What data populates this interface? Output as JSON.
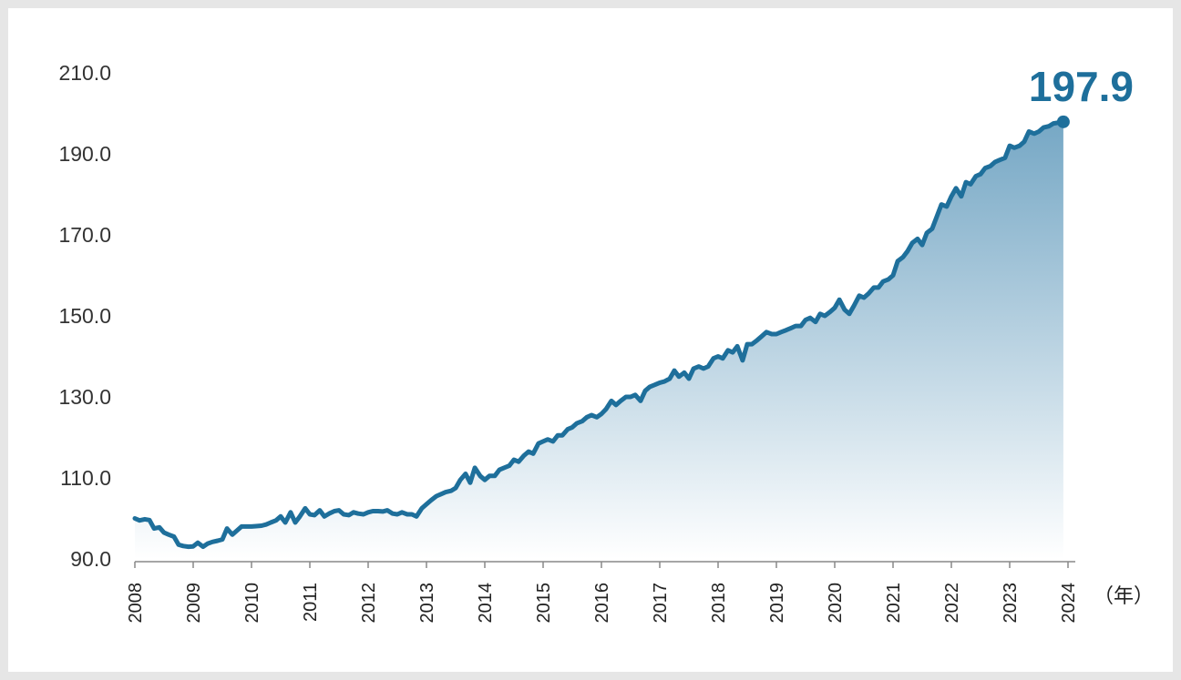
{
  "chart_data": {
    "type": "area",
    "title": "",
    "xlabel": "",
    "ylabel": "",
    "x_unit_label": "（年）",
    "ylim": [
      90,
      210
    ],
    "yticks": [
      "90.0",
      "110.0",
      "130.0",
      "150.0",
      "170.0",
      "190.0",
      "210.0"
    ],
    "yticks_values": [
      90,
      110,
      130,
      150,
      170,
      190,
      210
    ],
    "xticks": [
      "2008",
      "2009",
      "2010",
      "2011",
      "2012",
      "2013",
      "2014",
      "2015",
      "2016",
      "2017",
      "2018",
      "2019",
      "2020",
      "2021",
      "2022",
      "2023",
      "2024"
    ],
    "line_color": "#1e6f9b",
    "fill_color_top": "#6fa3c2",
    "fill_color_bottom": "#ffffff",
    "annotation": {
      "x": 2023.92,
      "y": 197.9,
      "label": "197.9"
    },
    "series": [
      {
        "name": "",
        "points": [
          [
            2008.0,
            100.0
          ],
          [
            2008.08,
            99.5
          ],
          [
            2008.17,
            99.8
          ],
          [
            2008.25,
            99.6
          ],
          [
            2008.33,
            97.5
          ],
          [
            2008.42,
            97.8
          ],
          [
            2008.5,
            96.5
          ],
          [
            2008.58,
            96.0
          ],
          [
            2008.67,
            95.5
          ],
          [
            2008.75,
            93.5
          ],
          [
            2008.83,
            93.2
          ],
          [
            2008.92,
            93.0
          ],
          [
            2009.0,
            93.1
          ],
          [
            2009.08,
            94.0
          ],
          [
            2009.17,
            93.0
          ],
          [
            2009.25,
            93.8
          ],
          [
            2009.33,
            94.2
          ],
          [
            2009.42,
            94.5
          ],
          [
            2009.5,
            94.8
          ],
          [
            2009.58,
            97.5
          ],
          [
            2009.67,
            96.0
          ],
          [
            2009.75,
            97.0
          ],
          [
            2009.83,
            98.0
          ],
          [
            2009.92,
            98.0
          ],
          [
            2010.0,
            98.0
          ],
          [
            2010.08,
            98.1
          ],
          [
            2010.17,
            98.2
          ],
          [
            2010.25,
            98.5
          ],
          [
            2010.33,
            99.0
          ],
          [
            2010.42,
            99.5
          ],
          [
            2010.5,
            100.5
          ],
          [
            2010.58,
            99.0
          ],
          [
            2010.67,
            101.5
          ],
          [
            2010.75,
            99.0
          ],
          [
            2010.83,
            100.5
          ],
          [
            2010.92,
            102.5
          ],
          [
            2011.0,
            101.0
          ],
          [
            2011.08,
            100.8
          ],
          [
            2011.17,
            102.0
          ],
          [
            2011.25,
            100.5
          ],
          [
            2011.33,
            101.2
          ],
          [
            2011.42,
            101.8
          ],
          [
            2011.5,
            102.0
          ],
          [
            2011.58,
            101.0
          ],
          [
            2011.67,
            100.8
          ],
          [
            2011.75,
            101.5
          ],
          [
            2011.83,
            101.2
          ],
          [
            2011.92,
            101.0
          ],
          [
            2012.0,
            101.5
          ],
          [
            2012.08,
            101.8
          ],
          [
            2012.17,
            101.8
          ],
          [
            2012.25,
            101.7
          ],
          [
            2012.33,
            102.0
          ],
          [
            2012.42,
            101.2
          ],
          [
            2012.5,
            101.0
          ],
          [
            2012.58,
            101.5
          ],
          [
            2012.67,
            101.0
          ],
          [
            2012.75,
            101.0
          ],
          [
            2012.83,
            100.5
          ],
          [
            2012.92,
            102.5
          ],
          [
            2013.0,
            103.5
          ],
          [
            2013.08,
            104.5
          ],
          [
            2013.17,
            105.5
          ],
          [
            2013.25,
            106.0
          ],
          [
            2013.33,
            106.5
          ],
          [
            2013.42,
            106.8
          ],
          [
            2013.5,
            107.5
          ],
          [
            2013.58,
            109.5
          ],
          [
            2013.67,
            111.0
          ],
          [
            2013.75,
            108.8
          ],
          [
            2013.83,
            112.5
          ],
          [
            2013.92,
            110.5
          ],
          [
            2014.0,
            109.5
          ],
          [
            2014.08,
            110.5
          ],
          [
            2014.17,
            110.5
          ],
          [
            2014.25,
            112.0
          ],
          [
            2014.33,
            112.5
          ],
          [
            2014.42,
            113.0
          ],
          [
            2014.5,
            114.5
          ],
          [
            2014.58,
            114.0
          ],
          [
            2014.67,
            115.5
          ],
          [
            2014.75,
            116.5
          ],
          [
            2014.83,
            116.0
          ],
          [
            2014.92,
            118.5
          ],
          [
            2015.0,
            119.0
          ],
          [
            2015.08,
            119.5
          ],
          [
            2015.17,
            119.0
          ],
          [
            2015.25,
            120.5
          ],
          [
            2015.33,
            120.5
          ],
          [
            2015.42,
            122.0
          ],
          [
            2015.5,
            122.5
          ],
          [
            2015.58,
            123.5
          ],
          [
            2015.67,
            124.0
          ],
          [
            2015.75,
            125.0
          ],
          [
            2015.83,
            125.5
          ],
          [
            2015.92,
            125.0
          ],
          [
            2016.0,
            125.8
          ],
          [
            2016.08,
            127.0
          ],
          [
            2016.17,
            129.0
          ],
          [
            2016.25,
            128.0
          ],
          [
            2016.33,
            129.0
          ],
          [
            2016.42,
            130.0
          ],
          [
            2016.5,
            130.0
          ],
          [
            2016.58,
            130.5
          ],
          [
            2016.67,
            129.0
          ],
          [
            2016.75,
            131.5
          ],
          [
            2016.83,
            132.5
          ],
          [
            2016.92,
            133.0
          ],
          [
            2017.0,
            133.5
          ],
          [
            2017.08,
            133.8
          ],
          [
            2017.17,
            134.5
          ],
          [
            2017.25,
            136.5
          ],
          [
            2017.33,
            135.0
          ],
          [
            2017.42,
            136.0
          ],
          [
            2017.5,
            134.5
          ],
          [
            2017.58,
            137.0
          ],
          [
            2017.67,
            137.5
          ],
          [
            2017.75,
            137.0
          ],
          [
            2017.83,
            137.5
          ],
          [
            2017.92,
            139.5
          ],
          [
            2018.0,
            140.0
          ],
          [
            2018.08,
            139.5
          ],
          [
            2018.17,
            141.5
          ],
          [
            2018.25,
            141.0
          ],
          [
            2018.33,
            142.5
          ],
          [
            2018.42,
            139.0
          ],
          [
            2018.5,
            143.0
          ],
          [
            2018.58,
            143.0
          ],
          [
            2018.67,
            144.0
          ],
          [
            2018.75,
            145.0
          ],
          [
            2018.83,
            146.0
          ],
          [
            2018.92,
            145.5
          ],
          [
            2019.0,
            145.5
          ],
          [
            2019.08,
            146.0
          ],
          [
            2019.17,
            146.5
          ],
          [
            2019.25,
            147.0
          ],
          [
            2019.33,
            147.5
          ],
          [
            2019.42,
            147.5
          ],
          [
            2019.5,
            149.0
          ],
          [
            2019.58,
            149.5
          ],
          [
            2019.67,
            148.5
          ],
          [
            2019.75,
            150.5
          ],
          [
            2019.83,
            150.0
          ],
          [
            2019.92,
            151.0
          ],
          [
            2020.0,
            152.0
          ],
          [
            2020.08,
            154.0
          ],
          [
            2020.17,
            151.5
          ],
          [
            2020.25,
            150.5
          ],
          [
            2020.33,
            152.5
          ],
          [
            2020.42,
            155.0
          ],
          [
            2020.5,
            154.5
          ],
          [
            2020.58,
            155.5
          ],
          [
            2020.67,
            157.0
          ],
          [
            2020.75,
            157.0
          ],
          [
            2020.83,
            158.5
          ],
          [
            2020.92,
            159.0
          ],
          [
            2021.0,
            160.0
          ],
          [
            2021.08,
            163.5
          ],
          [
            2021.17,
            164.5
          ],
          [
            2021.25,
            166.0
          ],
          [
            2021.33,
            168.0
          ],
          [
            2021.42,
            169.0
          ],
          [
            2021.5,
            167.5
          ],
          [
            2021.58,
            170.5
          ],
          [
            2021.67,
            171.5
          ],
          [
            2021.75,
            174.5
          ],
          [
            2021.83,
            177.5
          ],
          [
            2021.92,
            177.0
          ],
          [
            2022.0,
            179.5
          ],
          [
            2022.08,
            181.5
          ],
          [
            2022.17,
            179.5
          ],
          [
            2022.25,
            183.0
          ],
          [
            2022.33,
            182.5
          ],
          [
            2022.42,
            184.5
          ],
          [
            2022.5,
            185.0
          ],
          [
            2022.58,
            186.5
          ],
          [
            2022.67,
            187.0
          ],
          [
            2022.75,
            188.0
          ],
          [
            2022.83,
            188.5
          ],
          [
            2022.92,
            189.0
          ],
          [
            2023.0,
            192.0
          ],
          [
            2023.08,
            191.5
          ],
          [
            2023.17,
            192.0
          ],
          [
            2023.25,
            193.0
          ],
          [
            2023.33,
            195.5
          ],
          [
            2023.42,
            195.0
          ],
          [
            2023.5,
            195.5
          ],
          [
            2023.58,
            196.5
          ],
          [
            2023.67,
            196.8
          ],
          [
            2023.75,
            197.5
          ],
          [
            2023.92,
            197.9
          ]
        ]
      }
    ]
  }
}
